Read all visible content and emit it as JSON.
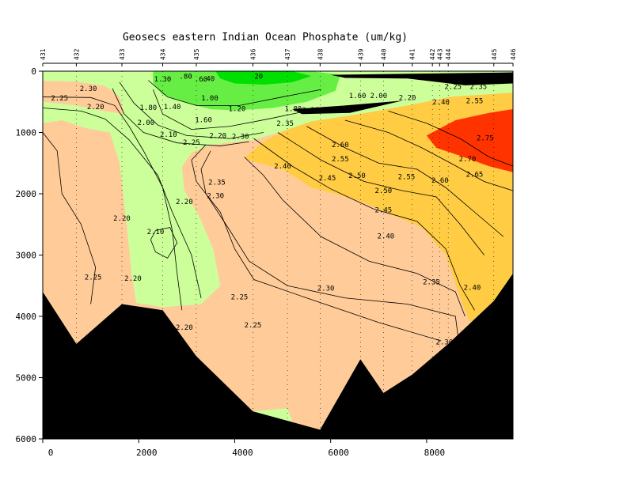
{
  "chart_data": {
    "type": "heatmap",
    "title": "Geosecs eastern Indian Ocean Phosphate (um/kg)",
    "xlabel": "",
    "ylabel": "",
    "xlim": [
      0,
      9800
    ],
    "ylim": [
      0,
      6000
    ],
    "y_inverted": true,
    "x_ticks": [
      0,
      2000,
      4000,
      6000,
      8000
    ],
    "y_ticks": [
      0,
      1000,
      2000,
      3000,
      4000,
      5000,
      6000
    ],
    "stations": [
      {
        "label": "431",
        "x": 0
      },
      {
        "label": "432",
        "x": 700
      },
      {
        "label": "433",
        "x": 1650
      },
      {
        "label": "434",
        "x": 2500
      },
      {
        "label": "435",
        "x": 3200
      },
      {
        "label": "436",
        "x": 4380
      },
      {
        "label": "437",
        "x": 5100
      },
      {
        "label": "438",
        "x": 5780
      },
      {
        "label": "439",
        "x": 6620
      },
      {
        "label": "440",
        "x": 7100
      },
      {
        "label": "441",
        "x": 7700
      },
      {
        "label": "442",
        "x": 8120
      },
      {
        "label": "443",
        "x": 8270
      },
      {
        "label": "444",
        "x": 8450
      },
      {
        "label": "445",
        "x": 9400
      },
      {
        "label": "446",
        "x": 9800
      }
    ],
    "color_bands": [
      {
        "range": "< 0.40",
        "color": "#00e000"
      },
      {
        "range": "0.40-1.20",
        "color": "#66ee44"
      },
      {
        "range": "1.20-2.20",
        "color": "#ccff99"
      },
      {
        "range": "2.20-2.40",
        "color": "#ffcc99"
      },
      {
        "range": "2.40-2.70",
        "color": "#ffcc44"
      },
      {
        "range": "> 2.70",
        "color": "#ff3300"
      }
    ],
    "bathymetry": [
      {
        "x": 0,
        "y": 3600
      },
      {
        "x": 700,
        "y": 4450
      },
      {
        "x": 1650,
        "y": 3800
      },
      {
        "x": 2500,
        "y": 3900
      },
      {
        "x": 3200,
        "y": 4650
      },
      {
        "x": 4380,
        "y": 5550
      },
      {
        "x": 5780,
        "y": 5850
      },
      {
        "x": 6620,
        "y": 4700
      },
      {
        "x": 7100,
        "y": 5250
      },
      {
        "x": 7700,
        "y": 4950
      },
      {
        "x": 8450,
        "y": 4450
      },
      {
        "x": 9400,
        "y": 3750
      },
      {
        "x": 9800,
        "y": 3300
      }
    ],
    "contour_labels": [
      {
        "text": "20",
        "x": 4500,
        "y": 120
      },
      {
        "text": ".40",
        "x": 3450,
        "y": 160
      },
      {
        "text": ".60",
        "x": 3300,
        "y": 165
      },
      {
        "text": ".80",
        "x": 2980,
        "y": 120
      },
      {
        "text": "1.30",
        "x": 2500,
        "y": 170
      },
      {
        "text": "1.00",
        "x": 3480,
        "y": 480
      },
      {
        "text": "1.20",
        "x": 4050,
        "y": 650
      },
      {
        "text": "1.40",
        "x": 2700,
        "y": 620
      },
      {
        "text": "1.60",
        "x": 3350,
        "y": 830
      },
      {
        "text": "1.80",
        "x": 2200,
        "y": 630
      },
      {
        "text": "1.80",
        "x": 5220,
        "y": 650
      },
      {
        "text": "2.00",
        "x": 2150,
        "y": 880
      },
      {
        "text": "2.10",
        "x": 2620,
        "y": 1070
      },
      {
        "text": "2.10",
        "x": 5580,
        "y": 670
      },
      {
        "text": "2.20",
        "x": 1100,
        "y": 620
      },
      {
        "text": "2.20",
        "x": 3650,
        "y": 1090
      },
      {
        "text": "2.25",
        "x": 350,
        "y": 480
      },
      {
        "text": "2.25",
        "x": 3100,
        "y": 1200
      },
      {
        "text": "2.30",
        "x": 950,
        "y": 320
      },
      {
        "text": "2.30",
        "x": 4120,
        "y": 1100
      },
      {
        "text": "2.35",
        "x": 5050,
        "y": 890
      },
      {
        "text": "1.60",
        "x": 6560,
        "y": 440
      },
      {
        "text": "2.00",
        "x": 7000,
        "y": 440
      },
      {
        "text": "2.20",
        "x": 7600,
        "y": 470
      },
      {
        "text": "2.25",
        "x": 8550,
        "y": 290
      },
      {
        "text": "2.35",
        "x": 9080,
        "y": 290
      },
      {
        "text": "2.40",
        "x": 8300,
        "y": 540
      },
      {
        "text": "2.55",
        "x": 9000,
        "y": 520
      },
      {
        "text": "2.75",
        "x": 9220,
        "y": 1130
      },
      {
        "text": "2.70",
        "x": 8850,
        "y": 1470
      },
      {
        "text": "2.65",
        "x": 9000,
        "y": 1720
      },
      {
        "text": "2.60",
        "x": 6200,
        "y": 1240
      },
      {
        "text": "2.60",
        "x": 8280,
        "y": 1820
      },
      {
        "text": "2.55",
        "x": 6200,
        "y": 1470
      },
      {
        "text": "2.55",
        "x": 7580,
        "y": 1760
      },
      {
        "text": "2.50",
        "x": 6550,
        "y": 1740
      },
      {
        "text": "2.50",
        "x": 7100,
        "y": 1990
      },
      {
        "text": "2.45",
        "x": 5930,
        "y": 1780
      },
      {
        "text": "2.45",
        "x": 7100,
        "y": 2300
      },
      {
        "text": "2.40",
        "x": 5000,
        "y": 1590
      },
      {
        "text": "2.40",
        "x": 7150,
        "y": 2730
      },
      {
        "text": "2.40",
        "x": 8950,
        "y": 3570
      },
      {
        "text": "2.35",
        "x": 3630,
        "y": 1850
      },
      {
        "text": "2.35",
        "x": 8100,
        "y": 3480
      },
      {
        "text": "2.30",
        "x": 3600,
        "y": 2070
      },
      {
        "text": "2.30",
        "x": 5900,
        "y": 3580
      },
      {
        "text": "2.30",
        "x": 8370,
        "y": 4460
      },
      {
        "text": "2.20",
        "x": 2950,
        "y": 2170
      },
      {
        "text": "2.20",
        "x": 1650,
        "y": 2440
      },
      {
        "text": "2.20",
        "x": 1880,
        "y": 3420
      },
      {
        "text": "2.20",
        "x": 2950,
        "y": 4220
      },
      {
        "text": "2.20",
        "x": 9280,
        "y": 4130
      },
      {
        "text": "2.10",
        "x": 2350,
        "y": 2660
      },
      {
        "text": "2.25",
        "x": 1050,
        "y": 3400
      },
      {
        "text": "2.25",
        "x": 4100,
        "y": 3720
      },
      {
        "text": "2.25",
        "x": 4380,
        "y": 4180
      }
    ]
  }
}
